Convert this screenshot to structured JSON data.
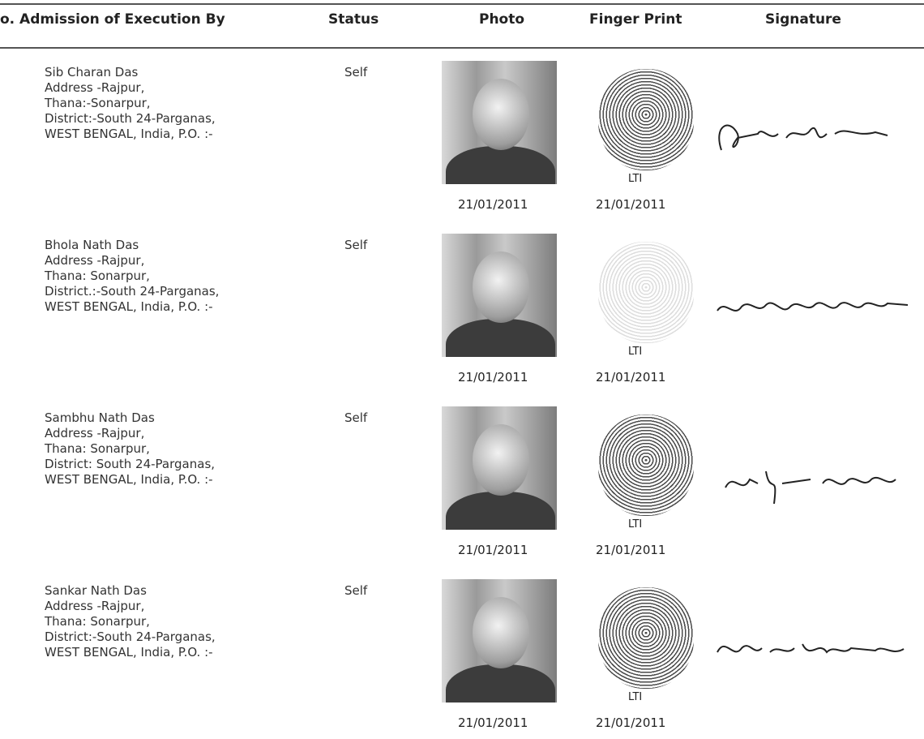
{
  "header": {
    "columns": [
      "o. Admission of Execution By",
      "Status",
      "Photo",
      "Finger Print",
      "Signature"
    ]
  },
  "rows": [
    {
      "name": "Sib Charan Das",
      "address": [
        "Address -Rajpur,",
        "Thana:-Sonarpur,",
        "District:-South 24-Parganas,",
        "WEST BENGAL, India,  P.O. :-"
      ],
      "status": "Self",
      "photo_date": "21/01/2011",
      "finger_label": "LTI",
      "finger_date": "21/01/2011"
    },
    {
      "name": "Bhola Nath Das",
      "address": [
        "Address -Rajpur,",
        "Thana: Sonarpur,",
        "District.:-South 24-Parganas,",
        "WEST BENGAL, India,  P.O. :-"
      ],
      "status": "Self",
      "photo_date": "21/01/2011",
      "finger_label": "LTI",
      "finger_date": "21/01/2011"
    },
    {
      "name": "Sambhu Nath Das",
      "address": [
        "Address -Rajpur,",
        "Thana: Sonarpur,",
        "District: South 24-Parganas,",
        "WEST BENGAL, India,  P.O. :-"
      ],
      "status": "Self",
      "photo_date": "21/01/2011",
      "finger_label": "LTI",
      "finger_date": "21/01/2011"
    },
    {
      "name": "Sankar Nath Das",
      "address": [
        "Address -Rajpur,",
        "Thana: Sonarpur,",
        "District:-South 24-Parganas,",
        "WEST BENGAL, India,  P.O. :-"
      ],
      "status": "Self",
      "photo_date": "21/01/2011",
      "finger_label": "LTI",
      "finger_date": "21/01/2011"
    }
  ]
}
